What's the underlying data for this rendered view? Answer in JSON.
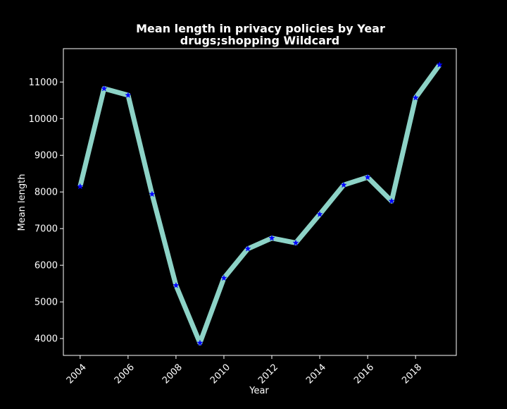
{
  "colors": {
    "background": "#000000",
    "axes": "#ffffff",
    "line": "#8dd3c7",
    "marker": "#0000ff",
    "text": "#ffffff"
  },
  "chart_data": {
    "type": "line",
    "title": "Mean length in privacy policies by Year",
    "subtitle": "drugs;shopping Wildcard",
    "xlabel": "Year",
    "ylabel": "Mean length",
    "xlim": [
      2003.3,
      2019.7
    ],
    "ylim": [
      3540,
      11910
    ],
    "x_ticks": [
      2004,
      2006,
      2008,
      2010,
      2012,
      2014,
      2016,
      2018
    ],
    "y_ticks": [
      4000,
      5000,
      6000,
      7000,
      8000,
      9000,
      10000,
      11000
    ],
    "grid": false,
    "marker": "star",
    "series": [
      {
        "x": [
          2004,
          2005,
          2006,
          2007,
          2008,
          2009,
          2010,
          2011,
          2012,
          2013,
          2014,
          2015,
          2016,
          2017,
          2018,
          2019
        ],
        "values": [
          8150,
          10820,
          10640,
          7940,
          5450,
          3880,
          5650,
          6450,
          6740,
          6610,
          7390,
          8190,
          8400,
          7750,
          10570,
          11470
        ]
      }
    ]
  }
}
